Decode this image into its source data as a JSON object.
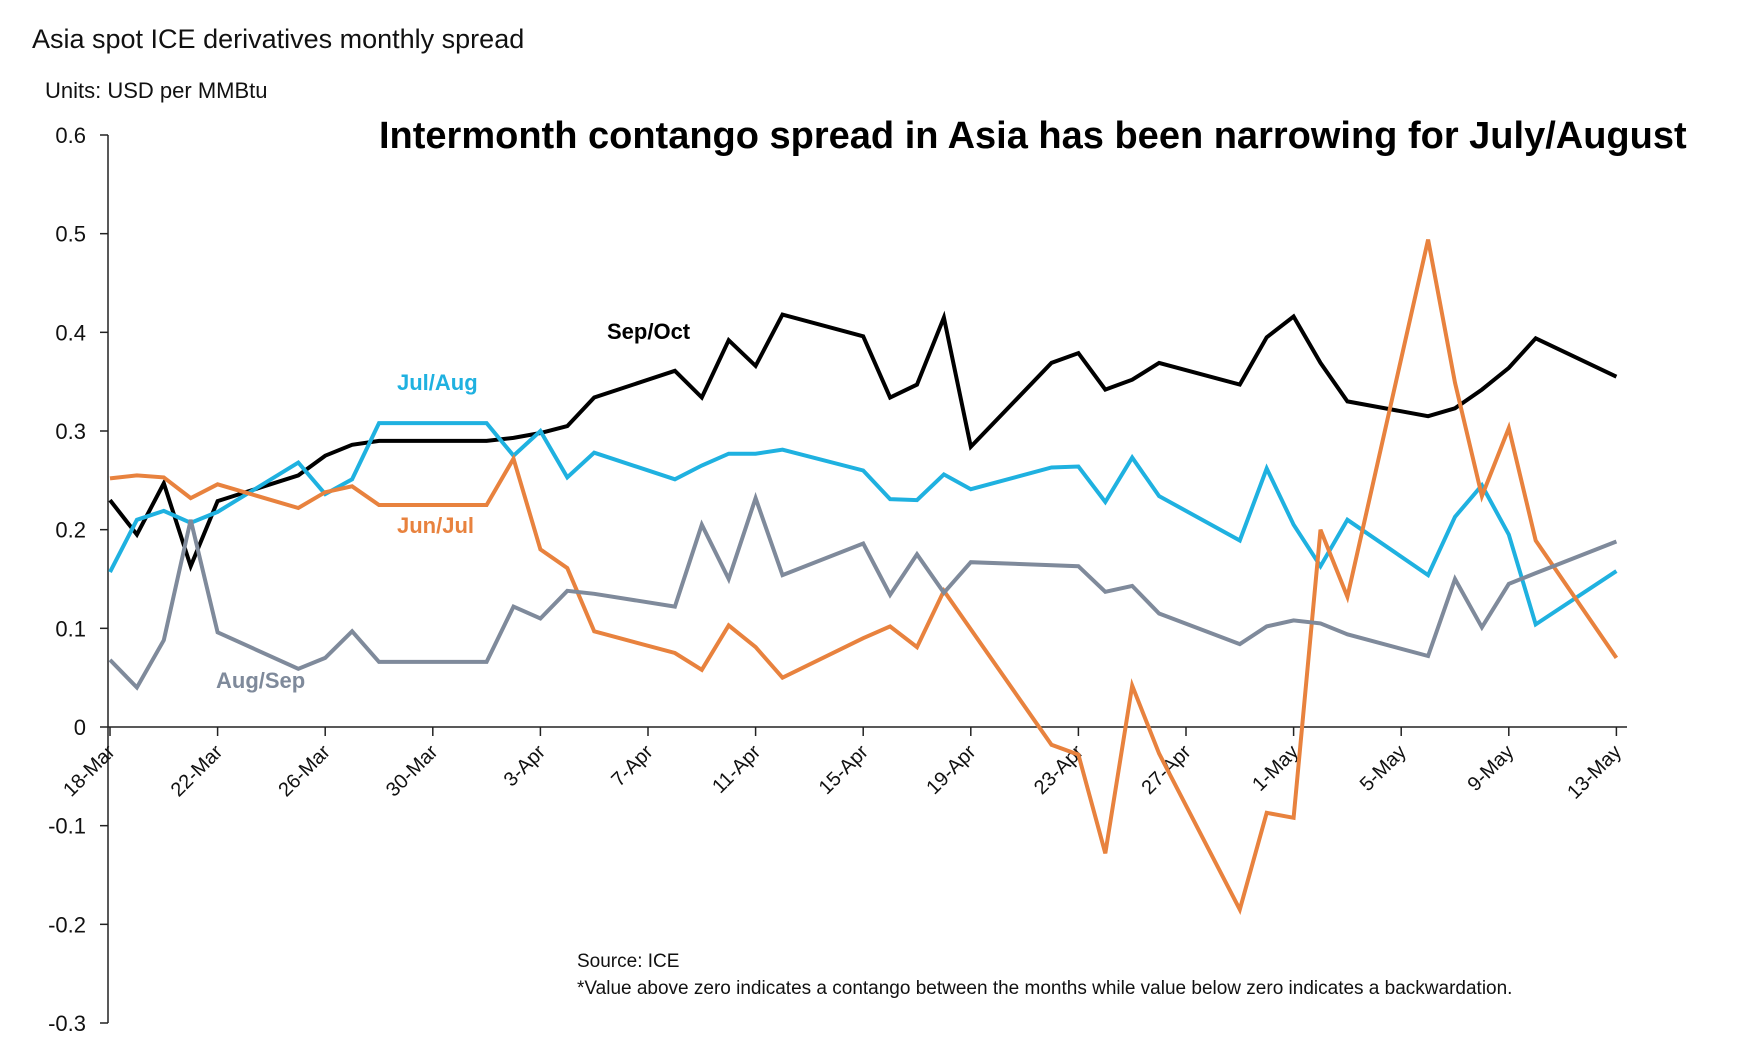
{
  "chart_data": {
    "type": "line",
    "title": "Asia spot ICE derivatives monthly spread",
    "subtitle": "Units: USD per MMBtu",
    "headline": "Intermonth contango spread in Asia has been narrowing for July/August",
    "source": "Source: ICE",
    "footnote": "*Value above zero indicates a contango between the months while value below zero indicates a backwardation.",
    "ylim": [
      -0.3,
      0.6
    ],
    "yticks": [
      0.6,
      0.5,
      0.4,
      0.3,
      0.2,
      0.1,
      0,
      -0.1,
      -0.2,
      -0.3
    ],
    "ytick_labels": [
      "0.6",
      "0.5",
      "0.4",
      "0.3",
      "0.2",
      "0.1",
      "0",
      "-0.1",
      "-0.2",
      "-0.3"
    ],
    "xlim": [
      "2019-03-18",
      "2019-05-14"
    ],
    "xticks": [
      "2019-03-18",
      "2019-03-22",
      "2019-03-26",
      "2019-03-30",
      "2019-04-03",
      "2019-04-07",
      "2019-04-11",
      "2019-04-15",
      "2019-04-19",
      "2019-04-23",
      "2019-04-27",
      "2019-05-01",
      "2019-05-05",
      "2019-05-09",
      "2019-05-13"
    ],
    "xtick_labels": [
      "18-Mar",
      "22-Mar",
      "26-Mar",
      "30-Mar",
      "3-Apr",
      "7-Apr",
      "11-Apr",
      "15-Apr",
      "19-Apr",
      "23-Apr",
      "27-Apr",
      "1-May",
      "5-May",
      "9-May",
      "13-May"
    ],
    "grid": false,
    "legend": "inline labels",
    "series": [
      {
        "name": "Sep/Oct",
        "color": "#000000",
        "points": [
          [
            "2019-03-18",
            0.23
          ],
          [
            "2019-03-19",
            0.195
          ],
          [
            "2019-03-20",
            0.247
          ],
          [
            "2019-03-21",
            0.163
          ],
          [
            "2019-03-22",
            0.229
          ],
          [
            "2019-03-25",
            0.255
          ],
          [
            "2019-03-26",
            0.275
          ],
          [
            "2019-03-27",
            0.286
          ],
          [
            "2019-03-28",
            0.29
          ],
          [
            "2019-04-01",
            0.29
          ],
          [
            "2019-04-02",
            0.293
          ],
          [
            "2019-04-03",
            0.298
          ],
          [
            "2019-04-04",
            0.305
          ],
          [
            "2019-04-05",
            0.334
          ],
          [
            "2019-04-08",
            0.361
          ],
          [
            "2019-04-09",
            0.334
          ],
          [
            "2019-04-10",
            0.392
          ],
          [
            "2019-04-11",
            0.366
          ],
          [
            "2019-04-12",
            0.418
          ],
          [
            "2019-04-15",
            0.396
          ],
          [
            "2019-04-16",
            0.334
          ],
          [
            "2019-04-17",
            0.347
          ],
          [
            "2019-04-18",
            0.415
          ],
          [
            "2019-04-19",
            0.284
          ],
          [
            "2019-04-22",
            0.369
          ],
          [
            "2019-04-23",
            0.379
          ],
          [
            "2019-04-24",
            0.342
          ],
          [
            "2019-04-25",
            0.352
          ],
          [
            "2019-04-26",
            0.369
          ],
          [
            "2019-04-29",
            0.347
          ],
          [
            "2019-04-30",
            0.395
          ],
          [
            "2019-05-01",
            0.416
          ],
          [
            "2019-05-02",
            0.369
          ],
          [
            "2019-05-03",
            0.33
          ],
          [
            "2019-05-06",
            0.315
          ],
          [
            "2019-05-07",
            0.323
          ],
          [
            "2019-05-08",
            0.342
          ],
          [
            "2019-05-09",
            0.364
          ],
          [
            "2019-05-10",
            0.394
          ],
          [
            "2019-05-13",
            0.355
          ]
        ]
      },
      {
        "name": "Jul/Aug",
        "color": "#1fb1e0",
        "points": [
          [
            "2019-03-18",
            0.157
          ],
          [
            "2019-03-19",
            0.21
          ],
          [
            "2019-03-20",
            0.219
          ],
          [
            "2019-03-21",
            0.207
          ],
          [
            "2019-03-22",
            0.218
          ],
          [
            "2019-03-25",
            0.268
          ],
          [
            "2019-03-26",
            0.236
          ],
          [
            "2019-03-27",
            0.251
          ],
          [
            "2019-03-28",
            0.308
          ],
          [
            "2019-04-01",
            0.308
          ],
          [
            "2019-04-02",
            0.275
          ],
          [
            "2019-04-03",
            0.3
          ],
          [
            "2019-04-04",
            0.253
          ],
          [
            "2019-04-05",
            0.278
          ],
          [
            "2019-04-08",
            0.251
          ],
          [
            "2019-04-09",
            0.265
          ],
          [
            "2019-04-10",
            0.277
          ],
          [
            "2019-04-11",
            0.277
          ],
          [
            "2019-04-12",
            0.281
          ],
          [
            "2019-04-15",
            0.26
          ],
          [
            "2019-04-16",
            0.231
          ],
          [
            "2019-04-17",
            0.23
          ],
          [
            "2019-04-18",
            0.256
          ],
          [
            "2019-04-19",
            0.241
          ],
          [
            "2019-04-22",
            0.263
          ],
          [
            "2019-04-23",
            0.264
          ],
          [
            "2019-04-24",
            0.228
          ],
          [
            "2019-04-25",
            0.273
          ],
          [
            "2019-04-26",
            0.234
          ],
          [
            "2019-04-29",
            0.189
          ],
          [
            "2019-04-30",
            0.262
          ],
          [
            "2019-05-01",
            0.205
          ],
          [
            "2019-05-02",
            0.163
          ],
          [
            "2019-05-03",
            0.21
          ],
          [
            "2019-05-06",
            0.154
          ],
          [
            "2019-05-07",
            0.213
          ],
          [
            "2019-05-08",
            0.245
          ],
          [
            "2019-05-09",
            0.195
          ],
          [
            "2019-05-10",
            0.104
          ],
          [
            "2019-05-13",
            0.158
          ]
        ]
      },
      {
        "name": "Jun/Jul",
        "color": "#e8823e",
        "points": [
          [
            "2019-03-18",
            0.252
          ],
          [
            "2019-03-19",
            0.255
          ],
          [
            "2019-03-20",
            0.253
          ],
          [
            "2019-03-21",
            0.232
          ],
          [
            "2019-03-22",
            0.246
          ],
          [
            "2019-03-25",
            0.222
          ],
          [
            "2019-03-26",
            0.238
          ],
          [
            "2019-03-27",
            0.244
          ],
          [
            "2019-03-28",
            0.225
          ],
          [
            "2019-04-01",
            0.225
          ],
          [
            "2019-04-02",
            0.272
          ],
          [
            "2019-04-03",
            0.18
          ],
          [
            "2019-04-04",
            0.161
          ],
          [
            "2019-04-05",
            0.097
          ],
          [
            "2019-04-08",
            0.075
          ],
          [
            "2019-04-09",
            0.058
          ],
          [
            "2019-04-10",
            0.103
          ],
          [
            "2019-04-11",
            0.081
          ],
          [
            "2019-04-12",
            0.05
          ],
          [
            "2019-04-15",
            0.09
          ],
          [
            "2019-04-16",
            0.102
          ],
          [
            "2019-04-17",
            0.081
          ],
          [
            "2019-04-18",
            0.138
          ],
          [
            "2019-04-22",
            -0.018
          ],
          [
            "2019-04-23",
            -0.028
          ],
          [
            "2019-04-24",
            -0.128
          ],
          [
            "2019-04-25",
            0.042
          ],
          [
            "2019-04-26",
            -0.027
          ],
          [
            "2019-04-29",
            -0.185
          ],
          [
            "2019-04-30",
            -0.087
          ],
          [
            "2019-05-01",
            -0.092
          ],
          [
            "2019-05-02",
            0.2
          ],
          [
            "2019-05-03",
            0.132
          ],
          [
            "2019-05-06",
            0.494
          ],
          [
            "2019-05-07",
            0.349
          ],
          [
            "2019-05-08",
            0.234
          ],
          [
            "2019-05-09",
            0.303
          ],
          [
            "2019-05-10",
            0.189
          ],
          [
            "2019-05-13",
            0.07
          ]
        ]
      },
      {
        "name": "Aug/Sep",
        "color": "#7f8a9b",
        "points": [
          [
            "2019-03-18",
            0.068
          ],
          [
            "2019-03-19",
            0.04
          ],
          [
            "2019-03-20",
            0.088
          ],
          [
            "2019-03-21",
            0.21
          ],
          [
            "2019-03-22",
            0.096
          ],
          [
            "2019-03-25",
            0.059
          ],
          [
            "2019-03-26",
            0.07
          ],
          [
            "2019-03-27",
            0.097
          ],
          [
            "2019-03-28",
            0.066
          ],
          [
            "2019-04-01",
            0.066
          ],
          [
            "2019-04-02",
            0.122
          ],
          [
            "2019-04-03",
            0.11
          ],
          [
            "2019-04-04",
            0.138
          ],
          [
            "2019-04-05",
            0.135
          ],
          [
            "2019-04-08",
            0.122
          ],
          [
            "2019-04-09",
            0.205
          ],
          [
            "2019-04-10",
            0.15
          ],
          [
            "2019-04-11",
            0.232
          ],
          [
            "2019-04-12",
            0.154
          ],
          [
            "2019-04-15",
            0.186
          ],
          [
            "2019-04-16",
            0.134
          ],
          [
            "2019-04-17",
            0.175
          ],
          [
            "2019-04-18",
            0.136
          ],
          [
            "2019-04-19",
            0.167
          ],
          [
            "2019-04-23",
            0.163
          ],
          [
            "2019-04-24",
            0.137
          ],
          [
            "2019-04-25",
            0.143
          ],
          [
            "2019-04-26",
            0.115
          ],
          [
            "2019-04-29",
            0.084
          ],
          [
            "2019-04-30",
            0.102
          ],
          [
            "2019-05-01",
            0.108
          ],
          [
            "2019-05-02",
            0.105
          ],
          [
            "2019-05-03",
            0.094
          ],
          [
            "2019-05-06",
            0.072
          ],
          [
            "2019-05-07",
            0.15
          ],
          [
            "2019-05-08",
            0.101
          ],
          [
            "2019-05-09",
            0.145
          ],
          [
            "2019-05-10",
            0.156
          ],
          [
            "2019-05-13",
            0.188
          ]
        ]
      }
    ]
  }
}
